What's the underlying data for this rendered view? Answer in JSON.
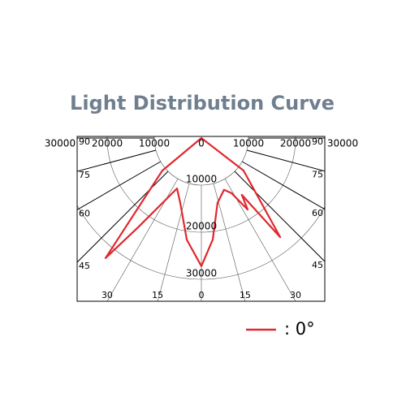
{
  "chart_data": {
    "type": "polar",
    "title": "Light Distribution Curve",
    "rlim": [
      0,
      35000
    ],
    "rticks": [
      0,
      10000,
      20000,
      30000
    ],
    "angle_ticks": [
      0,
      15,
      30,
      45,
      60,
      75,
      90
    ],
    "series": [
      {
        "name": ": 0°",
        "color": "#e0282e",
        "angles": [
          35.5,
          38.5,
          52.4,
          180,
          -50.2,
          -38.6,
          -35.3,
          -25.8,
          -18,
          -8.2,
          0,
          6.4,
          14,
          23.6,
          28.6,
          32.9
        ],
        "values": [
          14800,
          26900,
          11300,
          0,
          10800,
          32600,
          23200,
          11900,
          14500,
          21800,
          27200,
          21700,
          14200,
          12000,
          13300,
          18100
        ]
      }
    ]
  }
}
